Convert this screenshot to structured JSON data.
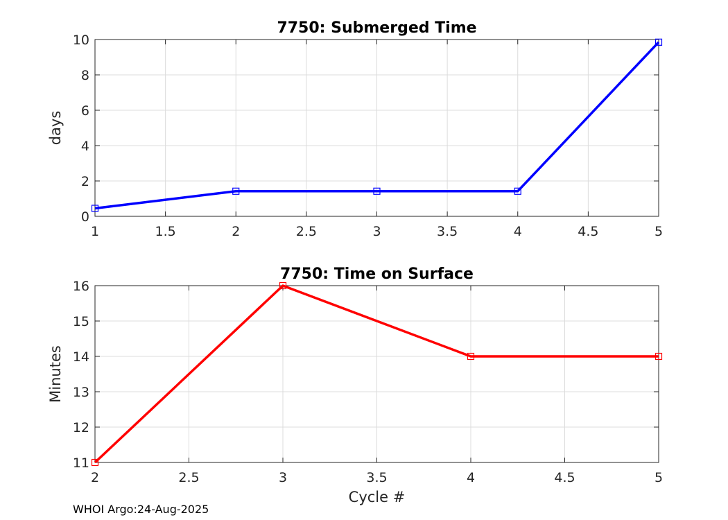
{
  "chart_data": [
    {
      "type": "line",
      "title": "7750: Submerged Time",
      "xlabel": "",
      "ylabel": "days",
      "x": [
        1,
        2,
        3,
        4,
        5
      ],
      "series": [
        {
          "name": "Submerged Time",
          "values": [
            0.45,
            1.42,
            1.42,
            1.42,
            9.85
          ],
          "color": "#0000ff",
          "marker": "square"
        }
      ],
      "xlim": [
        1,
        5
      ],
      "ylim": [
        0,
        10
      ],
      "xticks": [
        "1",
        "1.5",
        "2",
        "2.5",
        "3",
        "3.5",
        "4",
        "4.5",
        "5"
      ],
      "xtick_values": [
        1,
        1.5,
        2,
        2.5,
        3,
        3.5,
        4,
        4.5,
        5
      ],
      "yticks": [
        "0",
        "2",
        "4",
        "6",
        "8",
        "10"
      ],
      "ytick_values": [
        0,
        2,
        4,
        6,
        8,
        10
      ],
      "grid": true
    },
    {
      "type": "line",
      "title": "7750: Time on Surface",
      "xlabel": "Cycle #",
      "ylabel": "Minutes",
      "x": [
        2,
        3,
        4,
        5
      ],
      "series": [
        {
          "name": "Time on Surface",
          "values": [
            11,
            16,
            14,
            14
          ],
          "color": "#ff0000",
          "marker": "square"
        }
      ],
      "xlim": [
        2,
        5
      ],
      "ylim": [
        11,
        16
      ],
      "xticks": [
        "2",
        "2.5",
        "3",
        "3.5",
        "4",
        "4.5",
        "5"
      ],
      "xtick_values": [
        2,
        2.5,
        3,
        3.5,
        4,
        4.5,
        5
      ],
      "yticks": [
        "11",
        "12",
        "13",
        "14",
        "15",
        "16"
      ],
      "ytick_values": [
        11,
        12,
        13,
        14,
        15,
        16
      ],
      "grid": true
    }
  ],
  "footer": "WHOI Argo:24-Aug-2025"
}
